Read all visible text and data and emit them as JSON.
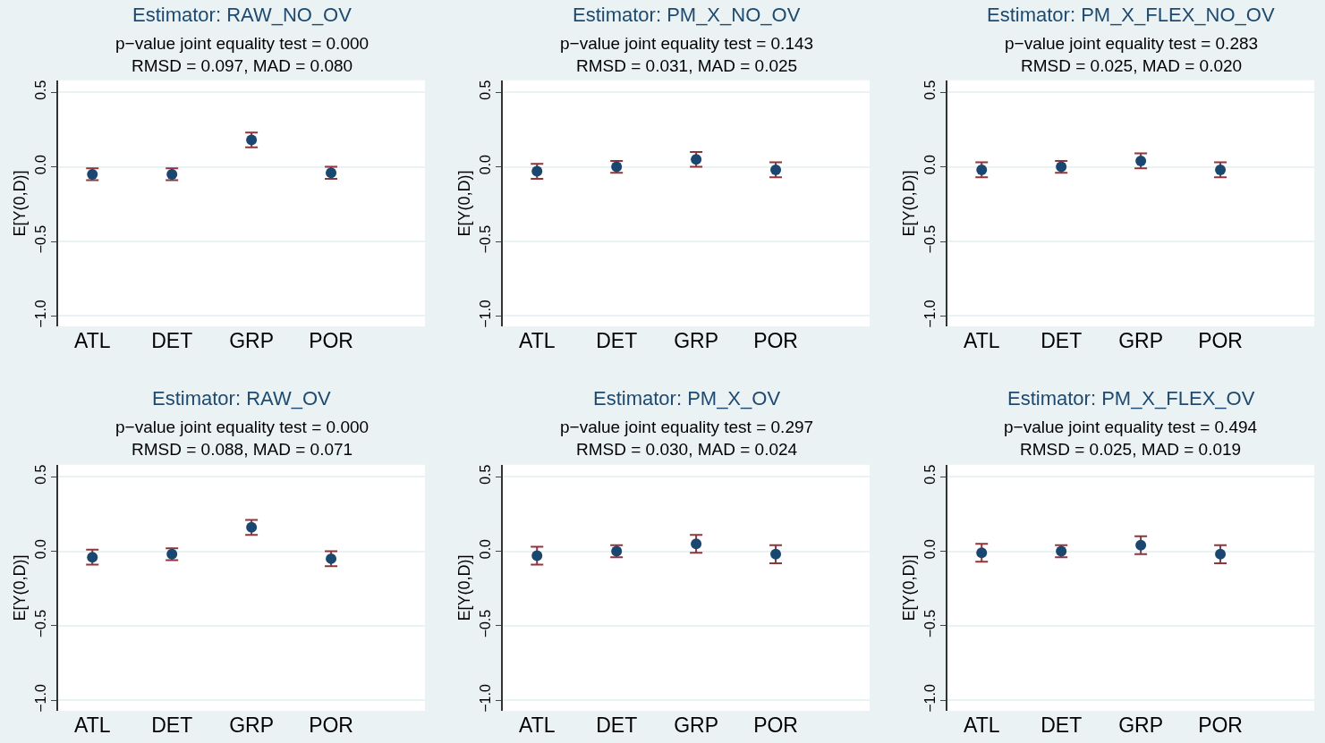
{
  "chart_data": [
    {
      "type": "scatter",
      "title": "Estimator: RAW_NO_OV",
      "subtitle": "p−value joint equality test = 0.000\nRMSD = 0.097, MAD = 0.080",
      "ylabel": "E[Y(0,D)]",
      "categories": [
        "ATL",
        "DET",
        "GRP",
        "POR"
      ],
      "series": [
        {
          "color": "#1a476f",
          "values": [
            -0.05,
            -0.05,
            0.18,
            -0.04
          ],
          "errors": [
            0.04,
            0.04,
            0.05,
            0.04
          ]
        }
      ],
      "ylim": [
        -1.07,
        0.58
      ],
      "yticks": [
        {
          "value": -1,
          "label": "−1.0"
        },
        {
          "value": -0.5,
          "label": "−0.5"
        },
        {
          "value": 0,
          "label": "0.0"
        },
        {
          "value": 0.5,
          "label": "0.5"
        }
      ],
      "grid": "y",
      "marker": "circle"
    },
    {
      "type": "scatter",
      "title": "Estimator: PM_X_NO_OV",
      "subtitle": "p−value joint equality test = 0.143\nRMSD = 0.031, MAD = 0.025",
      "ylabel": "E[Y(0,D)]",
      "categories": [
        "ATL",
        "DET",
        "GRP",
        "POR"
      ],
      "series": [
        {
          "color": "#1a476f",
          "values": [
            -0.03,
            0.0,
            0.05,
            -0.02
          ],
          "errors": [
            0.05,
            0.04,
            0.05,
            0.05
          ]
        }
      ],
      "ylim": [
        -1.07,
        0.58
      ],
      "yticks": [
        {
          "value": -1,
          "label": "−1.0"
        },
        {
          "value": -0.5,
          "label": "−0.5"
        },
        {
          "value": 0,
          "label": "0.0"
        },
        {
          "value": 0.5,
          "label": "0.5"
        }
      ],
      "grid": "y",
      "marker": "circle"
    },
    {
      "type": "scatter",
      "title": "Estimator: PM_X_FLEX_NO_OV",
      "subtitle": "p−value joint equality test = 0.283\nRMSD = 0.025, MAD = 0.020",
      "ylabel": "E[Y(0,D)]",
      "categories": [
        "ATL",
        "DET",
        "GRP",
        "POR"
      ],
      "series": [
        {
          "color": "#1a476f",
          "values": [
            -0.02,
            0.0,
            0.04,
            -0.02
          ],
          "errors": [
            0.05,
            0.04,
            0.05,
            0.05
          ]
        }
      ],
      "ylim": [
        -1.07,
        0.58
      ],
      "yticks": [
        {
          "value": -1,
          "label": "−1.0"
        },
        {
          "value": -0.5,
          "label": "−0.5"
        },
        {
          "value": 0,
          "label": "0.0"
        },
        {
          "value": 0.5,
          "label": "0.5"
        }
      ],
      "grid": "y",
      "marker": "circle"
    },
    {
      "type": "scatter",
      "title": "Estimator: RAW_OV",
      "subtitle": "p−value joint equality test = 0.000\nRMSD = 0.088, MAD = 0.071",
      "ylabel": "E[Y(0,D)]",
      "categories": [
        "ATL",
        "DET",
        "GRP",
        "POR"
      ],
      "series": [
        {
          "color": "#1a476f",
          "values": [
            -0.04,
            -0.02,
            0.16,
            -0.05
          ],
          "errors": [
            0.05,
            0.04,
            0.05,
            0.05
          ]
        }
      ],
      "ylim": [
        -1.07,
        0.58
      ],
      "yticks": [
        {
          "value": -1,
          "label": "−1.0"
        },
        {
          "value": -0.5,
          "label": "−0.5"
        },
        {
          "value": 0,
          "label": "0.0"
        },
        {
          "value": 0.5,
          "label": "0.5"
        }
      ],
      "grid": "y",
      "marker": "circle"
    },
    {
      "type": "scatter",
      "title": "Estimator: PM_X_OV",
      "subtitle": "p−value joint equality test = 0.297\nRMSD = 0.030, MAD = 0.024",
      "ylabel": "E[Y(0,D)]",
      "categories": [
        "ATL",
        "DET",
        "GRP",
        "POR"
      ],
      "series": [
        {
          "color": "#1a476f",
          "values": [
            -0.03,
            0.0,
            0.05,
            -0.02
          ],
          "errors": [
            0.06,
            0.04,
            0.06,
            0.06
          ]
        }
      ],
      "ylim": [
        -1.07,
        0.58
      ],
      "yticks": [
        {
          "value": -1,
          "label": "−1.0"
        },
        {
          "value": -0.5,
          "label": "−0.5"
        },
        {
          "value": 0,
          "label": "0.0"
        },
        {
          "value": 0.5,
          "label": "0.5"
        }
      ],
      "grid": "y",
      "marker": "circle"
    },
    {
      "type": "scatter",
      "title": "Estimator: PM_X_FLEX_OV",
      "subtitle": "p−value joint equality test = 0.494\nRMSD = 0.025, MAD = 0.019",
      "ylabel": "E[Y(0,D)]",
      "categories": [
        "ATL",
        "DET",
        "GRP",
        "POR"
      ],
      "series": [
        {
          "color": "#1a476f",
          "values": [
            -0.01,
            0.0,
            0.04,
            -0.02
          ],
          "errors": [
            0.06,
            0.04,
            0.06,
            0.06
          ]
        }
      ],
      "ylim": [
        -1.07,
        0.58
      ],
      "yticks": [
        {
          "value": -1,
          "label": "−1.0"
        },
        {
          "value": -0.5,
          "label": "−0.5"
        },
        {
          "value": 0,
          "label": "0.0"
        },
        {
          "value": 0.5,
          "label": "0.5"
        }
      ],
      "grid": "y",
      "marker": "circle"
    }
  ]
}
